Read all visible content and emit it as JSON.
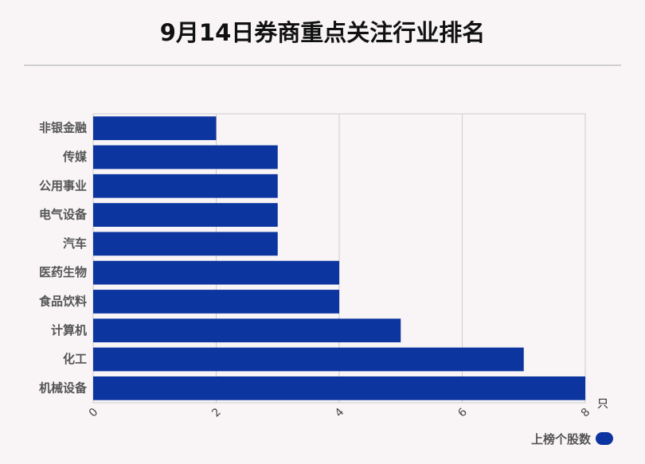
{
  "colors": {
    "bar": "#0d35a0",
    "grid": "#cccccc",
    "label": "#555555"
  },
  "chart_data": {
    "type": "bar",
    "orientation": "horizontal",
    "title": "9月14日券商重点关注行业排名",
    "categories": [
      "非银金融",
      "传媒",
      "公用事业",
      "电气设备",
      "汽车",
      "医药生物",
      "食品饮料",
      "计算机",
      "化工",
      "机械设备"
    ],
    "series": [
      {
        "name": "上榜个股数",
        "values": [
          2,
          3,
          3,
          3,
          3,
          4,
          4,
          5,
          7,
          8
        ]
      }
    ],
    "xticks": [
      "0",
      "2",
      "4",
      "6",
      "8"
    ],
    "xlim": [
      0,
      8
    ],
    "xunit": "只",
    "grid": true,
    "legend": "bottom-right"
  }
}
